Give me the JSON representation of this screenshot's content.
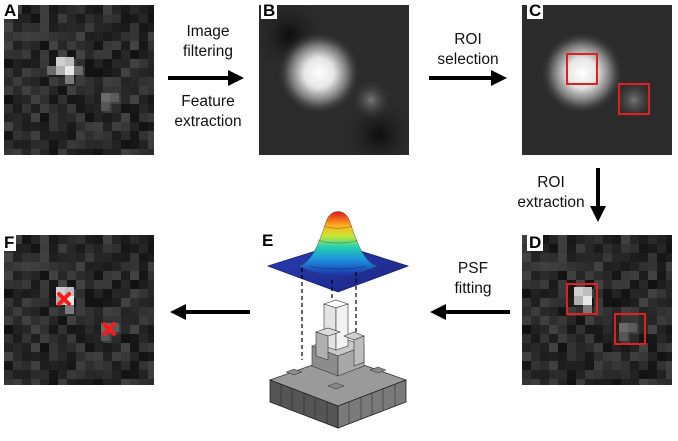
{
  "panels": {
    "A": {
      "label": "A"
    },
    "B": {
      "label": "B"
    },
    "C": {
      "label": "C"
    },
    "D": {
      "label": "D"
    },
    "E": {
      "label": "E"
    },
    "F": {
      "label": "F"
    }
  },
  "steps": {
    "ab": {
      "line1": "Image",
      "line2": "filtering",
      "line3": "Feature",
      "line4": "extraction"
    },
    "bc": {
      "line1": "ROI",
      "line2": "selection"
    },
    "cd": {
      "line1": "ROI",
      "line2": "extraction"
    },
    "de": {
      "line1": "PSF",
      "line2": "fitting"
    }
  },
  "colors": {
    "roi_box": "#e02020",
    "marker": "#ff1a1a",
    "arrow": "#000000",
    "background": "#ffffff"
  },
  "icons": [
    "roi-box",
    "localization-cross-marker",
    "psf-gaussian-surface",
    "3d-pixel-histogram"
  ]
}
